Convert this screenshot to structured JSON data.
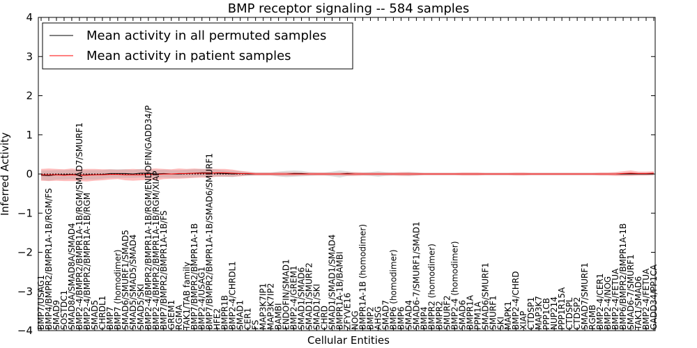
{
  "chart_data": {
    "type": "line",
    "title": "BMP receptor signaling -- 584 samples",
    "xlabel": "Cellular Entities",
    "ylabel": "Inferred Activity",
    "ylim": [
      -4,
      4
    ],
    "yticks": [
      -4,
      -3,
      -2,
      -1,
      0,
      1,
      2,
      3,
      4
    ],
    "legend_position": "top-left",
    "categories": [
      "BMP7/USAG1",
      "BMP4/BMPR2/BMPR1A-1B/RGM/FS",
      "SMAD9",
      "SOSTDC1",
      "SMAD8A/SMAD8A/SMAD4",
      "BMP2-4/BMPR2/BMPR1A-1B/RGM/SMAD7/SMURF1",
      "BMP2-4/BMPR2/BMPR1A-1B/RGM",
      "SMAD5",
      "CHRDL1",
      "BMP7",
      "BMP7 (homodimer)",
      "SMAD6/SMURF1/SMAD5",
      "SMAD5/SMAD5/SMAD4",
      "SMAD5/SKI",
      "BMP2-4/BMPR2/BMPR1A-1B/RGM/ENDOFIN/GADD34/P",
      "BMP2-4/BMPR2/BMPR1A-1B/RGM/XIAP",
      "BMP7/BMPR2/BMPR1A-1B/FS",
      "GREM1",
      "RGMA",
      "TAK1/TAB family",
      "BMP7/BMPR2/BMPR1A-1B",
      "BMP2-4/USAG1",
      "BMP7/BMPR2/BMPR1A-1B/SMAD6/SMURF1",
      "HFE2",
      "BMPR1B",
      "BMP2-4/CHRDL1",
      "SMAD1",
      "CER1",
      "FS",
      "MAP3K7IP1",
      "MAP3K7IP2",
      "BAMBI",
      "ENDOFIN/SMAD1",
      "BMP2-4/GREM1",
      "SMAD1/SMAD6",
      "SMAD1/SMURF2",
      "SMAD1/SKI",
      "CHRD",
      "SMAD1/SMAD1/SMAD4",
      "BMPR1A-1B/BAMBI",
      "ZFYVE16",
      "NOG",
      "BMPR1A-1B (homodimer)",
      "BMP2",
      "AHSG",
      "SMAD7",
      "BMP6 (homodimer)",
      "BMP6",
      "SMAD4",
      "SMAD6-7/SMURF1/SMAD1",
      "BMP4",
      "BMPR2 (homodimer)",
      "BMPR2",
      "SMURF2",
      "BMP2-4 (homodimer)",
      "SMAD6",
      "BMPR1A",
      "PPM1A",
      "SMAD6/SMURF1",
      "SMURF1",
      "SKI",
      "MAPK1",
      "BMP2-4/CHRD",
      "XIAP",
      "CTDSP1",
      "MAP3K7",
      "PPP1CB",
      "NUP214",
      "PPP1R15A",
      "CTDSPL",
      "CTDSP2",
      "SMAD7/SMURF1",
      "RGMB",
      "BMP2-4/CER1",
      "BMP2-4/NOG",
      "BMP2-4/FETUA",
      "BMP6/BMPR2/BMPR1A-1B",
      "SMAD6-7/SMURF1",
      "TAK1/SMAD6",
      "BMP2-4/FETUA",
      "GADD34/PP1CA"
    ],
    "series": [
      {
        "name": "Mean activity in all permuted samples",
        "color": "#000000",
        "band_color": "#999999",
        "values": [
          -0.03,
          -0.04,
          -0.02,
          -0.02,
          -0.01,
          -0.03,
          -0.02,
          -0.02,
          -0.01,
          0.01,
          0.01,
          0.01,
          0.0,
          0.02,
          0.02,
          0.0,
          0.01,
          0.0,
          0.0,
          0.01,
          0.02,
          0.03,
          0.03,
          0.02,
          0.01,
          0.0,
          0.01,
          0.0,
          0.0,
          0.0,
          0.0,
          0.0,
          0.0,
          0.01,
          0.01,
          0.0,
          0.0,
          0.0,
          0.0,
          0.0,
          0.01,
          0.0,
          0.0,
          0.0,
          0.0,
          0.0,
          0.0,
          0.0,
          0.0,
          0.0,
          0.0,
          0.0,
          0.0,
          0.0,
          0.0,
          0.0,
          0.0,
          0.0,
          0.0,
          0.0,
          0.0,
          0.0,
          0.0,
          0.0,
          0.0,
          0.0,
          0.0,
          0.0,
          0.0,
          0.0,
          0.0,
          0.0,
          0.0,
          0.0,
          0.0,
          0.0,
          0.0,
          0.0,
          0.0,
          0.0,
          0.0
        ],
        "spread": [
          0.12,
          0.13,
          0.12,
          0.12,
          0.12,
          0.12,
          0.12,
          0.12,
          0.11,
          0.11,
          0.11,
          0.11,
          0.1,
          0.11,
          0.11,
          0.1,
          0.1,
          0.1,
          0.1,
          0.1,
          0.1,
          0.1,
          0.1,
          0.09,
          0.08,
          0.08,
          0.06,
          0.05,
          0.04,
          0.04,
          0.04,
          0.06,
          0.08,
          0.08,
          0.07,
          0.05,
          0.04,
          0.04,
          0.06,
          0.09,
          0.06,
          0.04,
          0.04,
          0.05,
          0.07,
          0.05,
          0.04,
          0.04,
          0.05,
          0.04,
          0.03,
          0.03,
          0.03,
          0.03,
          0.03,
          0.03,
          0.03,
          0.03,
          0.03,
          0.03,
          0.03,
          0.03,
          0.03,
          0.03,
          0.03,
          0.03,
          0.03,
          0.03,
          0.03,
          0.03,
          0.03,
          0.03,
          0.03,
          0.03,
          0.03,
          0.03,
          0.03,
          0.03,
          0.03,
          0.03,
          0.03
        ]
      },
      {
        "name": "Mean activity in patient samples",
        "color": "#ff0000",
        "band_color": "#ff6b6b",
        "values": [
          -0.02,
          -0.02,
          -0.02,
          -0.03,
          -0.02,
          -0.03,
          -0.03,
          -0.02,
          -0.02,
          -0.01,
          -0.01,
          -0.02,
          -0.02,
          -0.02,
          -0.01,
          -0.01,
          0.0,
          0.0,
          0.01,
          0.01,
          0.02,
          0.02,
          0.02,
          0.03,
          0.03,
          0.02,
          0.01,
          0.01,
          0.0,
          0.0,
          0.0,
          0.0,
          0.0,
          0.0,
          0.0,
          0.0,
          0.0,
          0.0,
          0.0,
          0.0,
          0.0,
          0.0,
          0.0,
          0.0,
          0.0,
          0.0,
          0.0,
          0.0,
          0.0,
          0.0,
          0.0,
          0.0,
          0.0,
          0.0,
          0.0,
          0.0,
          0.0,
          0.0,
          0.0,
          0.0,
          0.0,
          0.0,
          0.0,
          0.0,
          0.0,
          0.0,
          0.0,
          0.0,
          0.0,
          0.0,
          0.0,
          0.0,
          0.0,
          0.0,
          0.0,
          0.0,
          0.01,
          0.02,
          0.01,
          0.01,
          0.02
        ],
        "spread": [
          0.15,
          0.16,
          0.15,
          0.15,
          0.16,
          0.15,
          0.16,
          0.15,
          0.14,
          0.13,
          0.12,
          0.14,
          0.15,
          0.14,
          0.14,
          0.15,
          0.13,
          0.12,
          0.13,
          0.12,
          0.12,
          0.11,
          0.11,
          0.1,
          0.1,
          0.09,
          0.07,
          0.05,
          0.04,
          0.04,
          0.04,
          0.05,
          0.05,
          0.05,
          0.04,
          0.04,
          0.04,
          0.04,
          0.04,
          0.04,
          0.05,
          0.05,
          0.04,
          0.04,
          0.04,
          0.04,
          0.04,
          0.05,
          0.05,
          0.04,
          0.03,
          0.03,
          0.03,
          0.03,
          0.03,
          0.04,
          0.04,
          0.04,
          0.03,
          0.03,
          0.03,
          0.03,
          0.04,
          0.04,
          0.03,
          0.03,
          0.03,
          0.03,
          0.03,
          0.03,
          0.03,
          0.03,
          0.03,
          0.04,
          0.04,
          0.05,
          0.06,
          0.07,
          0.05,
          0.05,
          0.05
        ]
      }
    ]
  }
}
